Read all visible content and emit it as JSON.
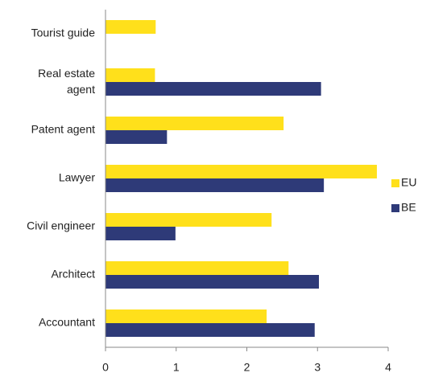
{
  "chart_data": {
    "type": "bar",
    "orientation": "horizontal",
    "categories": [
      "Tourist guide",
      "Real estate agent",
      "Patent agent",
      "Lawyer",
      "Civil engineer",
      "Architect",
      "Accountant"
    ],
    "series": [
      {
        "name": "EU",
        "color": "#ffe01b",
        "values": [
          0.71,
          0.7,
          2.52,
          3.84,
          2.35,
          2.59,
          2.28
        ]
      },
      {
        "name": "BE",
        "color": "#2e3a78",
        "values": [
          null,
          3.05,
          0.87,
          3.09,
          0.99,
          3.02,
          2.96
        ]
      }
    ],
    "xlim": [
      0,
      4
    ],
    "xticks": [
      0,
      1,
      2,
      3,
      4
    ],
    "grid": false,
    "legend": "right"
  }
}
